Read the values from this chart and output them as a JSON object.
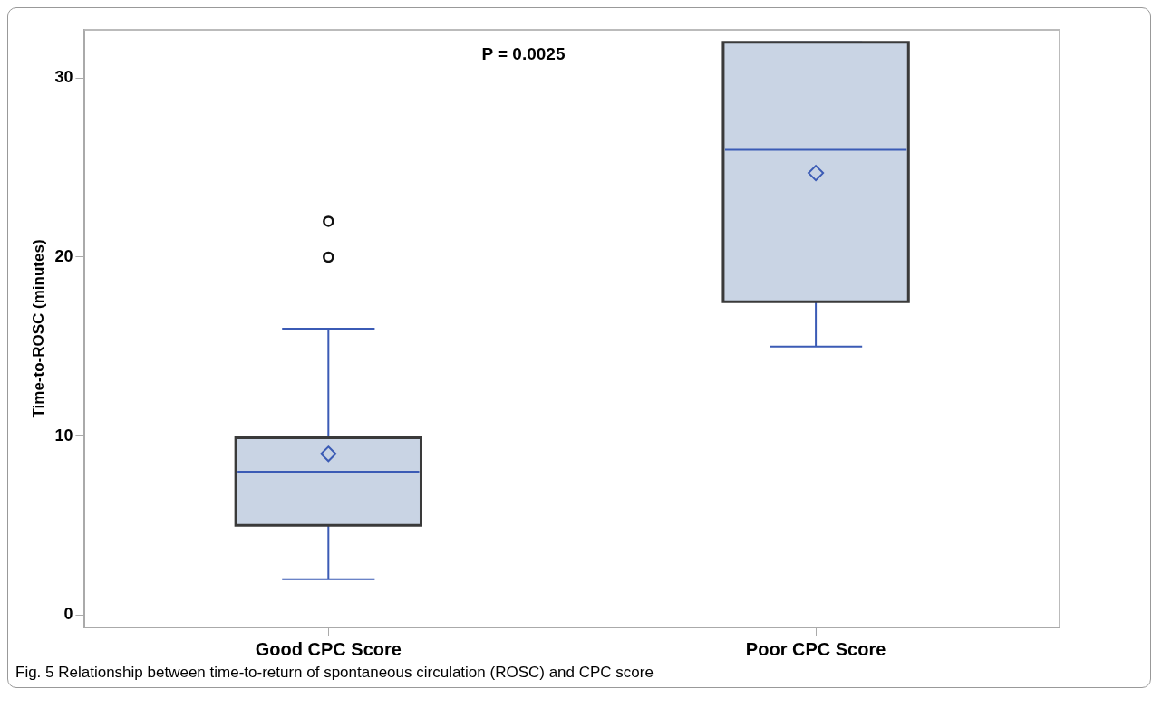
{
  "chart_data": {
    "type": "box",
    "ylabel": "Time-to-ROSC (minutes)",
    "categories": [
      "Good CPC Score",
      "Poor CPC Score"
    ],
    "boxes": [
      {
        "low": 2,
        "q1": 5,
        "median": 8,
        "q3": 9.9,
        "high": 16,
        "mean": 9,
        "outliers": [
          20,
          22
        ]
      },
      {
        "low": 15,
        "q1": 17.5,
        "median": 26,
        "q3": 32,
        "high": 32,
        "mean": 24.7
      }
    ],
    "color": "#c9d4e4",
    "ylim": [
      -0.7,
      32.7
    ],
    "yticks": [
      0,
      10,
      20,
      30
    ],
    "annotations": [
      "P = 0.0025",
      "Fig. 5  Relationship between time-to-return of spontaneous circulation (ROSC) and CPC score"
    ]
  }
}
